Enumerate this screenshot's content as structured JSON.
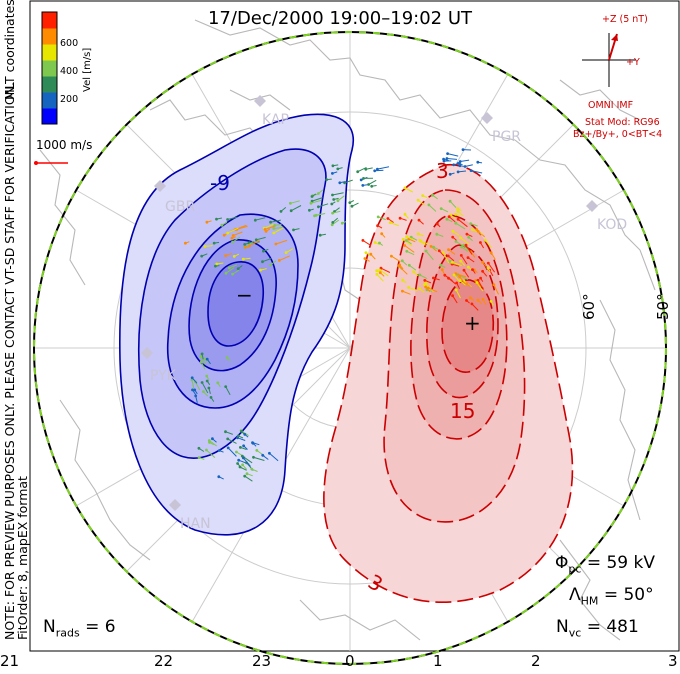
{
  "title": "17/Dec/2000 19:00–19:02 UT",
  "side_text": {
    "mlt_coordinates": "MLT coordinates",
    "note": "NOTE: FOR PREVIEW PURPOSES ONLY. PLEASE CONTACT VT-SD STAFF FOR VERIFICATION.",
    "fit_order": "FitOrder: 8, mapEX format"
  },
  "colorbar": {
    "title": "Vel [m/s]",
    "ticks": [
      "600",
      "400",
      "200"
    ],
    "colors": [
      "#0000ff",
      "#1565c0",
      "#2e8b57",
      "#7ec850",
      "#e6e600",
      "#ff8c00",
      "#ff2000"
    ]
  },
  "velocity_scale": {
    "label": "1000 m/s",
    "color": "#ff0000"
  },
  "imf": {
    "z_label": "+Z (5 nT)",
    "y_label": "+Y",
    "source": "OMNI IMF",
    "stat_mod": "Stat Mod: RG96",
    "condition": "Bz+/By+, 0<BT<4",
    "color": "#d00000"
  },
  "contours": {
    "negative_label": "-9",
    "negative_min_marker": "−",
    "positive_label_3": "3",
    "positive_label_15": "15",
    "positive_label_bottom": "3",
    "positive_max_marker": "+",
    "negative_color": "#0000b0",
    "positive_color": "#cc0000"
  },
  "latitudes": {
    "lat60": "60°",
    "lat50": "50°"
  },
  "stations": [
    "KAP",
    "PGR",
    "GBR",
    "KOD",
    "PYK",
    "HAN"
  ],
  "stats": {
    "phi_pc": "Φ",
    "phi_pc_sub": "pc",
    "phi_pc_value": "= 59 kV",
    "lambda_hm": "Λ",
    "lambda_hm_sub": "HM",
    "lambda_hm_value": "= 50°",
    "n_vc": "N",
    "n_vc_sub": "vc",
    "n_vc_value": "= 481",
    "n_rads": "N",
    "n_rads_sub": "rads",
    "n_rads_value": "= 6"
  },
  "mlt_axis": [
    "21",
    "22",
    "23",
    "0",
    "1",
    "2",
    "3"
  ]
}
